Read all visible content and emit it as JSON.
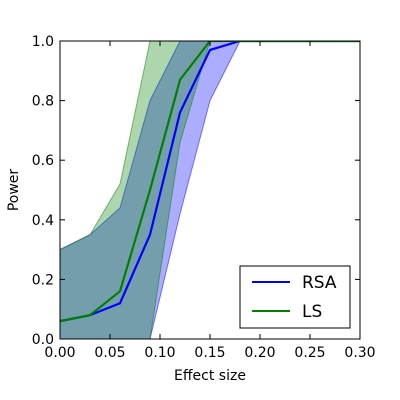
{
  "chart_data": {
    "type": "line",
    "title": "",
    "xlabel": "Effect size",
    "ylabel": "Power",
    "xlim": [
      0,
      0.3
    ],
    "ylim": [
      0,
      1
    ],
    "grid": false,
    "legend_position": "bottom-right",
    "x_ticks": [
      "0.00",
      "0.05",
      "0.10",
      "0.15",
      "0.20",
      "0.25",
      "0.30"
    ],
    "y_ticks": [
      "0.0",
      "0.2",
      "0.4",
      "0.6",
      "0.8",
      "1.0"
    ],
    "series": [
      {
        "name": "RSA",
        "color": "#0000ff",
        "x": [
          0,
          0.03,
          0.06,
          0.09,
          0.12,
          0.15,
          0.18,
          0.21,
          0.24,
          0.27,
          0.3
        ],
        "y": [
          0.06,
          0.08,
          0.12,
          0.35,
          0.76,
          0.97,
          1.0,
          1.0,
          1.0,
          1.0,
          1.0
        ],
        "band_upper": [
          0.3,
          0.35,
          0.44,
          0.8,
          1.0,
          1.0,
          1.0,
          1.0,
          1.0,
          1.0,
          1.0
        ],
        "band_lower": [
          0.0,
          0.0,
          0.0,
          0.0,
          0.42,
          0.8,
          1.0,
          1.0,
          1.0,
          1.0,
          1.0
        ]
      },
      {
        "name": "LS",
        "color": "#008000",
        "x": [
          0,
          0.03,
          0.06,
          0.09,
          0.12,
          0.15,
          0.18,
          0.21,
          0.24,
          0.27,
          0.3
        ],
        "y": [
          0.06,
          0.08,
          0.16,
          0.5,
          0.87,
          1.0,
          1.0,
          1.0,
          1.0,
          1.0,
          1.0
        ],
        "band_upper": [
          0.3,
          0.35,
          0.52,
          1.0,
          1.0,
          1.0,
          1.0,
          1.0,
          1.0,
          1.0,
          1.0
        ],
        "band_lower": [
          0.0,
          0.0,
          0.0,
          0.0,
          0.66,
          1.0,
          1.0,
          1.0,
          1.0,
          1.0,
          1.0
        ]
      }
    ]
  }
}
